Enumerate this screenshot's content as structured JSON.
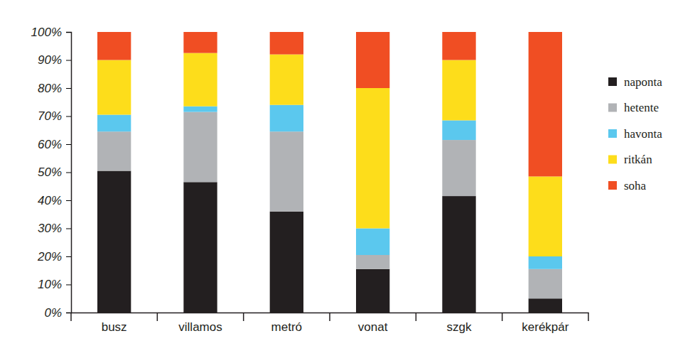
{
  "chart_data": {
    "type": "bar",
    "stacked": true,
    "legend": "right",
    "grid": false,
    "categories": [
      "busz",
      "villamos",
      "metró",
      "vonat",
      "szgk",
      "kerékpár"
    ],
    "series": [
      {
        "name": "naponta",
        "color": "#231f20",
        "values": [
          50.5,
          46.5,
          36,
          15.5,
          41.5,
          5
        ]
      },
      {
        "name": "hetente",
        "color": "#b1b3b6",
        "values": [
          14,
          25,
          28.5,
          5,
          20,
          10.5
        ]
      },
      {
        "name": "havonta",
        "color": "#5bc8ee",
        "values": [
          6,
          2,
          9.5,
          9.5,
          7,
          4.5
        ]
      },
      {
        "name": "ritkán",
        "color": "#fddd1b",
        "values": [
          19.5,
          19,
          18,
          50,
          21.5,
          28.5
        ]
      },
      {
        "name": "soha",
        "color": "#f04e23",
        "values": [
          10,
          7.5,
          8,
          20,
          10,
          51.5
        ]
      }
    ],
    "ylim": [
      0,
      100
    ],
    "yticks": [
      {
        "value": 0,
        "label": "0%"
      },
      {
        "value": 10,
        "label": "10%"
      },
      {
        "value": 20,
        "label": "20%"
      },
      {
        "value": 30,
        "label": "30%"
      },
      {
        "value": 40,
        "label": "40%"
      },
      {
        "value": 50,
        "label": "50%"
      },
      {
        "value": 60,
        "label": "60%"
      },
      {
        "value": 70,
        "label": "70%"
      },
      {
        "value": 80,
        "label": "80%"
      },
      {
        "value": 90,
        "label": "90%"
      },
      {
        "value": 100,
        "label": "100%"
      }
    ]
  }
}
